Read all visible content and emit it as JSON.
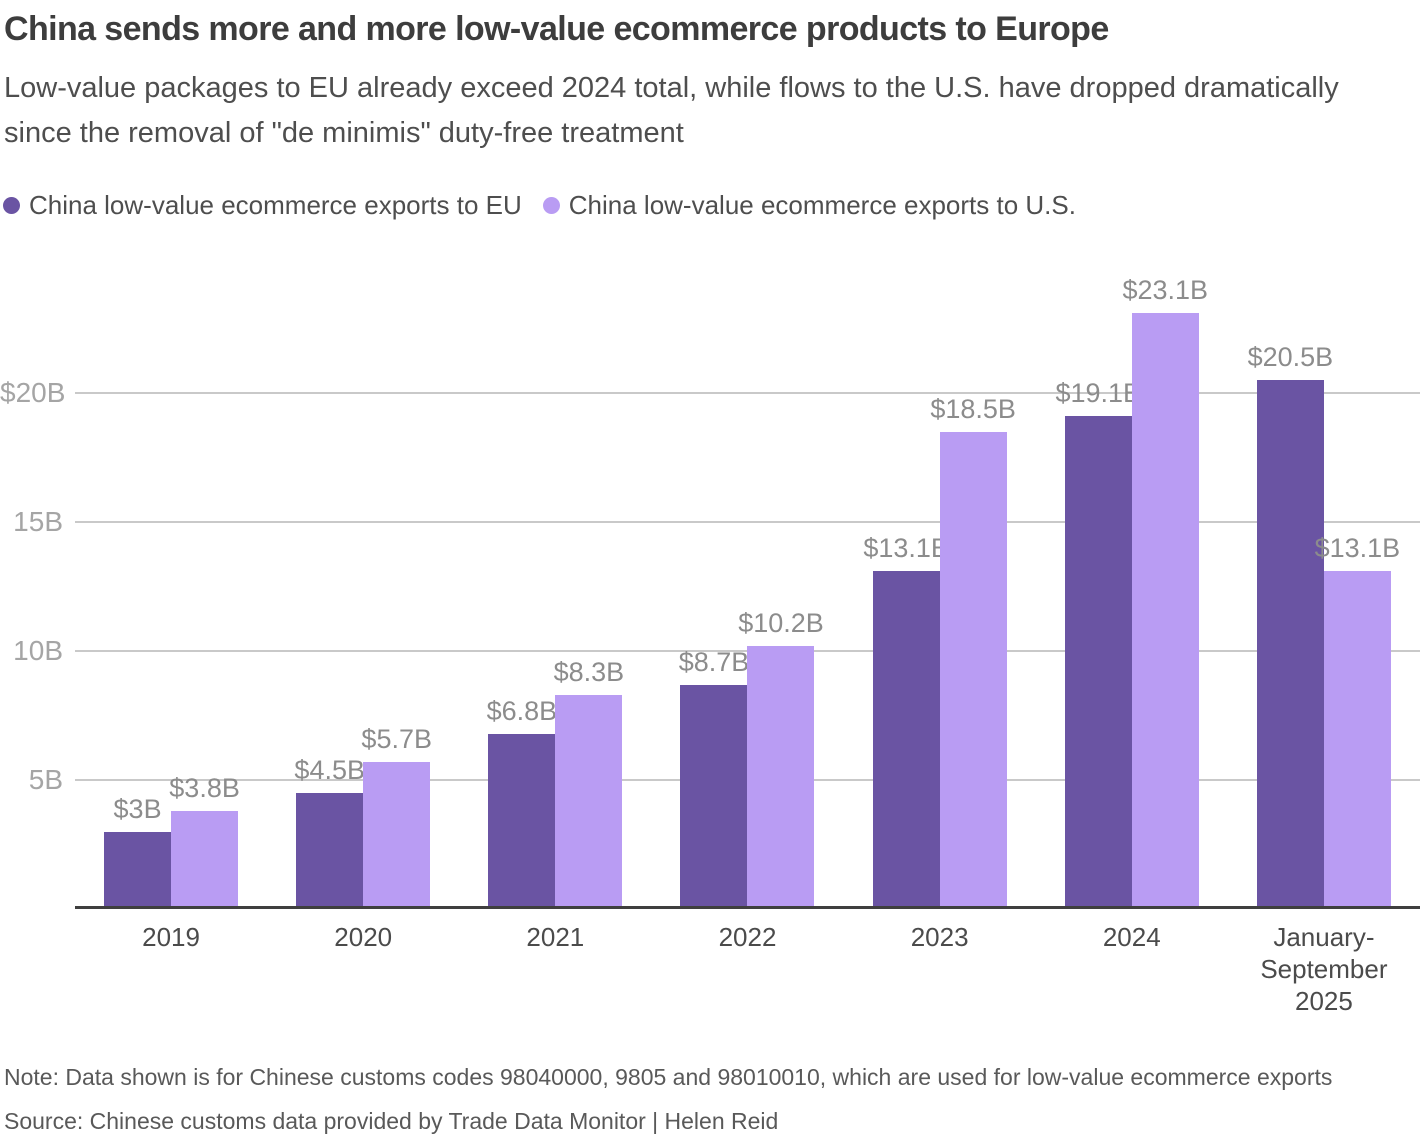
{
  "header": {
    "title": "China sends more and more low-value ecommerce products to Europe",
    "subtitle": "Low-value packages to EU already exceed 2024 total, while flows to the U.S. have dropped dramatically since the removal of \"de minimis\" duty-free treatment"
  },
  "chart_data": {
    "type": "bar",
    "title": "China sends more and more low-value ecommerce products to Europe",
    "categories": [
      "2019",
      "2020",
      "2021",
      "2022",
      "2023",
      "2024",
      "January-September 2025"
    ],
    "series": [
      {
        "name": "China low-value ecommerce exports to EU",
        "color": "#6a54a3",
        "values": [
          3.0,
          4.5,
          6.8,
          8.7,
          13.1,
          19.1,
          20.5
        ],
        "labels": [
          "$3B",
          "$4.5B",
          "$6.8B",
          "$8.7B",
          "$13.1B",
          "$19.1B",
          "$20.5B"
        ]
      },
      {
        "name": "China low-value ecommerce exports to U.S.",
        "color": "#b99cf3",
        "values": [
          3.8,
          5.7,
          8.3,
          10.2,
          18.5,
          23.1,
          13.1
        ],
        "labels": [
          "$3.8B",
          "$5.7B",
          "$8.3B",
          "$10.2B",
          "$18.5B",
          "$23.1B",
          "$13.1B"
        ]
      }
    ],
    "unit": "USD billions",
    "xlabel": "",
    "ylabel": "",
    "ylim": [
      0,
      25.35
    ],
    "y_axis": {
      "ticks": [
        {
          "value": 5,
          "label": "5B"
        },
        {
          "value": 10,
          "label": "10B"
        },
        {
          "value": 15,
          "label": "15B"
        },
        {
          "value": 20,
          "label": "$20B"
        }
      ]
    },
    "grid": true,
    "grid_color": "#c9c9c9",
    "axis_color": "#3f3f3f",
    "legend_position": "top"
  },
  "footer": {
    "note": "Note: Data shown is for Chinese customs codes 98040000, 9805 and 98010010, which are used for low-value ecommerce exports",
    "source": "Source: Chinese customs data provided by Trade Data Monitor | Helen Reid"
  }
}
